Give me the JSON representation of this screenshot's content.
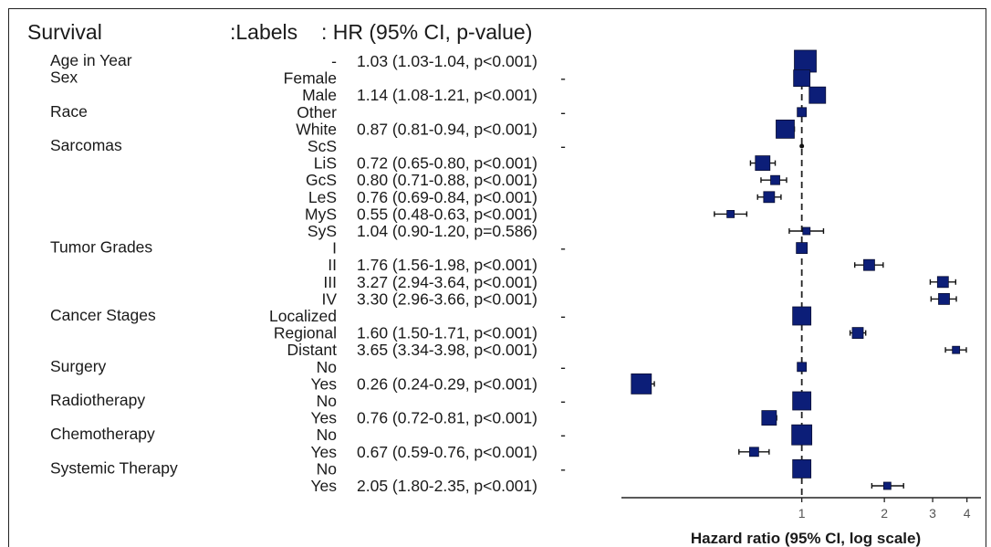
{
  "header": {
    "survival": "Survival",
    "labels": ":Labels",
    "hr": ": HR (95% CI, p-value)"
  },
  "chart_data": {
    "type": "forest",
    "xlabel": "Hazard ratio (95% CI, log scale)",
    "x_scale": "log",
    "xlim": [
      0.22,
      4.5
    ],
    "ticks": [
      1,
      2,
      3,
      4
    ],
    "reference_line": 1,
    "marker_color": "#0c1e78",
    "rows": [
      {
        "group": "Age in Year",
        "label": "-",
        "text": "1.03 (1.03-1.04, p<0.001)",
        "hr": 1.03,
        "lo": 1.03,
        "hi": 1.04,
        "size": 12
      },
      {
        "group": "Sex",
        "label": "Female",
        "text": "-",
        "hr": 1.0,
        "size": 9
      },
      {
        "group": "",
        "label": "Male",
        "text": "1.14 (1.08-1.21, p<0.001)",
        "hr": 1.14,
        "lo": 1.08,
        "hi": 1.21,
        "size": 9
      },
      {
        "group": "Race",
        "label": "Other",
        "text": "-",
        "hr": 1.0,
        "size": 5
      },
      {
        "group": "",
        "label": "White",
        "text": "0.87 (0.81-0.94, p<0.001)",
        "hr": 0.87,
        "lo": 0.81,
        "hi": 0.94,
        "size": 10
      },
      {
        "group": "Sarcomas",
        "label": "ScS",
        "text": "-",
        "hr": 1.0,
        "size": 3
      },
      {
        "group": "",
        "label": "LiS",
        "text": "0.72 (0.65-0.80, p<0.001)",
        "hr": 0.72,
        "lo": 0.65,
        "hi": 0.8,
        "size": 8
      },
      {
        "group": "",
        "label": "GcS",
        "text": "0.80 (0.71-0.88, p<0.001)",
        "hr": 0.8,
        "lo": 0.71,
        "hi": 0.88,
        "size": 5
      },
      {
        "group": "",
        "label": "LeS",
        "text": "0.76 (0.69-0.84, p<0.001)",
        "hr": 0.76,
        "lo": 0.69,
        "hi": 0.84,
        "size": 6
      },
      {
        "group": "",
        "label": "MyS",
        "text": "0.55 (0.48-0.63, p<0.001)",
        "hr": 0.55,
        "lo": 0.48,
        "hi": 0.63,
        "size": 4
      },
      {
        "group": "",
        "label": "SyS",
        "text": "1.04 (0.90-1.20, p=0.586)",
        "hr": 1.04,
        "lo": 0.9,
        "hi": 1.2,
        "size": 4
      },
      {
        "group": "Tumor Grades",
        "label": "I",
        "text": "-",
        "hr": 1.0,
        "size": 6
      },
      {
        "group": "",
        "label": "II",
        "text": "1.76 (1.56-1.98, p<0.001)",
        "hr": 1.76,
        "lo": 1.56,
        "hi": 1.98,
        "size": 6
      },
      {
        "group": "",
        "label": "III",
        "text": "3.27 (2.94-3.64, p<0.001)",
        "hr": 3.27,
        "lo": 2.94,
        "hi": 3.64,
        "size": 6
      },
      {
        "group": "",
        "label": "IV",
        "text": "3.30 (2.96-3.66, p<0.001)",
        "hr": 3.3,
        "lo": 2.96,
        "hi": 3.66,
        "size": 6
      },
      {
        "group": "Cancer Stages",
        "label": "Localized",
        "text": "-",
        "hr": 1.0,
        "size": 10
      },
      {
        "group": "",
        "label": "Regional",
        "text": "1.60 (1.50-1.71, p<0.001)",
        "hr": 1.6,
        "lo": 1.5,
        "hi": 1.71,
        "size": 6
      },
      {
        "group": "",
        "label": "Distant",
        "text": "3.65 (3.34-3.98, p<0.001)",
        "hr": 3.65,
        "lo": 3.34,
        "hi": 3.98,
        "size": 4
      },
      {
        "group": "Surgery",
        "label": "No",
        "text": "-",
        "hr": 1.0,
        "size": 5
      },
      {
        "group": "",
        "label": "Yes",
        "text": "0.26 (0.24-0.29, p<0.001)",
        "hr": 0.26,
        "lo": 0.24,
        "hi": 0.29,
        "size": 11
      },
      {
        "group": "Radiotherapy",
        "label": "No",
        "text": "-",
        "hr": 1.0,
        "size": 10
      },
      {
        "group": "",
        "label": "Yes",
        "text": "0.76 (0.72-0.81, p<0.001)",
        "hr": 0.76,
        "lo": 0.72,
        "hi": 0.81,
        "size": 8
      },
      {
        "group": "Chemotherapy",
        "label": "No",
        "text": "-",
        "hr": 1.0,
        "size": 11
      },
      {
        "group": "",
        "label": "Yes",
        "text": "0.67 (0.59-0.76, p<0.001)",
        "hr": 0.67,
        "lo": 0.59,
        "hi": 0.76,
        "size": 5
      },
      {
        "group": "Systemic Therapy",
        "label": "No",
        "text": "-",
        "hr": 1.0,
        "size": 10
      },
      {
        "group": "",
        "label": "Yes",
        "text": "2.05 (1.80-2.35, p<0.001)",
        "hr": 2.05,
        "lo": 1.8,
        "hi": 2.35,
        "size": 4
      }
    ]
  }
}
